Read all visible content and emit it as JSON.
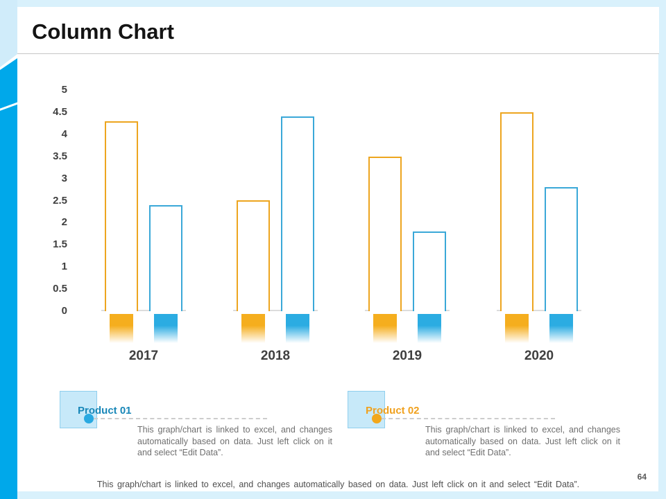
{
  "title": "Column Chart",
  "page_number": "64",
  "footer_note": "This graph/chart is linked to excel, and changes automatically based on data. Just left click on it and select “Edit Data”.",
  "chart_data": {
    "type": "bar",
    "title": "Column Chart",
    "categories": [
      "2017",
      "2018",
      "2019",
      "2020"
    ],
    "series": [
      {
        "name": "Product 02",
        "color": "#eda51f",
        "gradient_color": "#f5ae1e",
        "values": [
          4.3,
          2.5,
          3.5,
          4.5
        ]
      },
      {
        "name": "Product 01",
        "color": "#3aa8d8",
        "gradient_color": "#2bace2",
        "values": [
          2.4,
          4.4,
          1.8,
          2.8
        ]
      }
    ],
    "xlabel": "",
    "ylabel": "",
    "ylim": [
      0,
      5
    ],
    "yticks": [
      "5",
      "4.5",
      "4",
      "3.5",
      "3",
      "2.5",
      "2",
      "1.5",
      "1",
      "0.5",
      "0"
    ],
    "grid": false,
    "bar_style": "outlined-with-gradient-base",
    "legend_position": "bottom"
  },
  "legends": [
    {
      "label": "Product 01",
      "label_color": "#1887b8",
      "dot_color": "#29a9e1",
      "swatch_fill": "#c7e9f9",
      "description": "This graph/chart is linked to excel, and changes automatically based on data. Just left click on it and select “Edit Data”."
    },
    {
      "label": "Product 02",
      "label_color": "#f0a11e",
      "dot_color": "#f2a71b",
      "swatch_fill": "#c7e9f9",
      "description": "This graph/chart is linked to excel, and changes automatically based on data. Just left click on it and select “Edit Data”."
    }
  ]
}
